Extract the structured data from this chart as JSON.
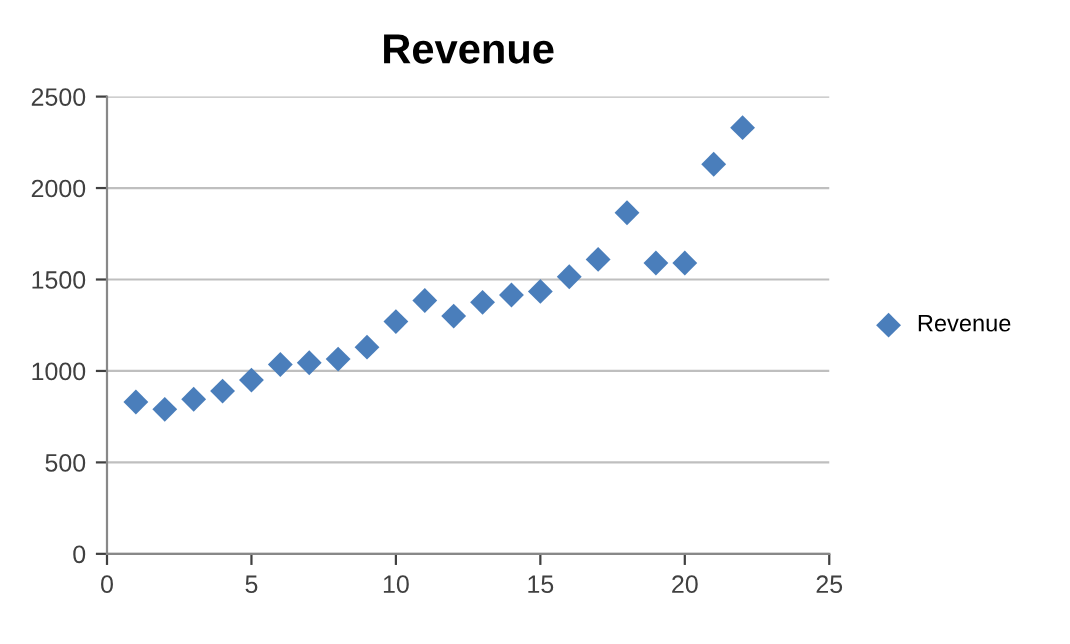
{
  "chart_data": {
    "type": "scatter",
    "title": "Revenue",
    "x": [
      1,
      2,
      3,
      4,
      5,
      6,
      7,
      8,
      9,
      10,
      11,
      12,
      13,
      14,
      15,
      16,
      17,
      18,
      19,
      20,
      21,
      22
    ],
    "series": [
      {
        "name": "Revenue",
        "color": "#4a7ebb",
        "values": [
          830,
          790,
          845,
          890,
          950,
          1035,
          1045,
          1065,
          1130,
          1270,
          1385,
          1300,
          1375,
          1415,
          1435,
          1515,
          1610,
          1865,
          1590,
          1590,
          2130,
          2330
        ]
      }
    ],
    "xlim": [
      0,
      25
    ],
    "xticks": [
      0,
      5,
      10,
      15,
      20,
      25
    ],
    "ylim": [
      0,
      2500
    ],
    "yticks": [
      0,
      500,
      1000,
      1500,
      2000,
      2500
    ],
    "grid": "y",
    "legend": "right",
    "marker": "diamond"
  }
}
